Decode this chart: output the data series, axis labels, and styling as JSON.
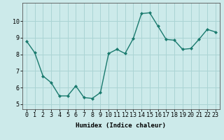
{
  "x": [
    0,
    1,
    2,
    3,
    4,
    5,
    6,
    7,
    8,
    9,
    10,
    11,
    12,
    13,
    14,
    15,
    16,
    17,
    18,
    19,
    20,
    21,
    22,
    23
  ],
  "y": [
    8.8,
    8.1,
    6.7,
    6.3,
    5.5,
    5.5,
    6.1,
    5.4,
    5.35,
    5.7,
    8.05,
    8.3,
    8.05,
    8.95,
    10.45,
    10.5,
    9.7,
    8.9,
    8.85,
    8.3,
    8.35,
    8.9,
    9.5,
    9.35
  ],
  "line_color": "#1a7a6e",
  "marker": "D",
  "marker_size": 2.0,
  "bg_color": "#cceaea",
  "grid_color": "#aad4d4",
  "xlabel": "Humidex (Indice chaleur)",
  "ylim": [
    4.7,
    11.1
  ],
  "xlim": [
    -0.5,
    23.5
  ],
  "yticks": [
    5,
    6,
    7,
    8,
    9,
    10
  ],
  "xticks": [
    0,
    1,
    2,
    3,
    4,
    5,
    6,
    7,
    8,
    9,
    10,
    11,
    12,
    13,
    14,
    15,
    16,
    17,
    18,
    19,
    20,
    21,
    22,
    23
  ],
  "xlabel_fontsize": 6.5,
  "tick_fontsize": 6,
  "line_width": 1.0
}
